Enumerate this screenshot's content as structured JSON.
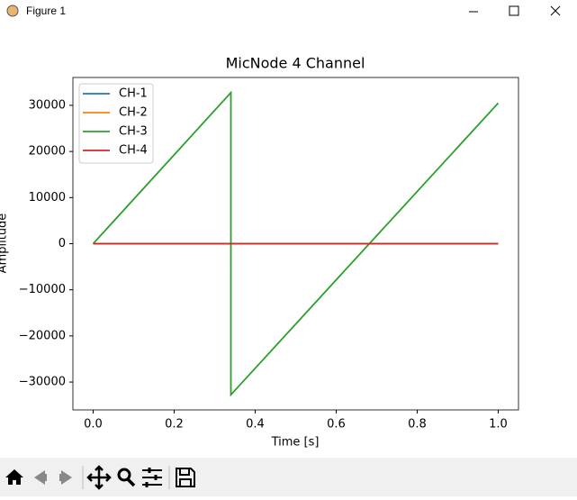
{
  "window": {
    "title": "Figure 1"
  },
  "chart_data": {
    "type": "line",
    "title": "MicNode 4 Channel",
    "x_label": "Time [s]",
    "y_label": "Amplitude",
    "x": [
      0,
      0.34,
      0.34,
      1.0
    ],
    "series": [
      {
        "name": "CH-1",
        "color": "#1f77b4",
        "values": [
          0,
          0,
          0,
          0
        ]
      },
      {
        "name": "CH-2",
        "color": "#ff7f0e",
        "values": [
          0,
          0,
          0,
          0
        ]
      },
      {
        "name": "CH-3",
        "color": "#2ca02c",
        "values": [
          0,
          32767,
          -32768,
          30500
        ]
      },
      {
        "name": "CH-4",
        "color": "#d62728",
        "values": [
          0,
          0,
          0,
          0
        ]
      }
    ],
    "xlim": [
      -0.05,
      1.05
    ],
    "xticks": [
      {
        "value": 0,
        "label": "0.0"
      },
      0.2,
      0.4,
      0.6,
      0.8,
      {
        "value": 1,
        "label": "1.0"
      }
    ],
    "ylim": [
      -36044,
      36044
    ],
    "yticks": [
      {
        "value": -30000,
        "label": "−30000"
      },
      {
        "value": -20000,
        "label": "−20000"
      },
      {
        "value": -10000,
        "label": "−10000"
      },
      0,
      10000,
      20000,
      30000
    ],
    "grid": false,
    "legend": "upper left"
  }
}
